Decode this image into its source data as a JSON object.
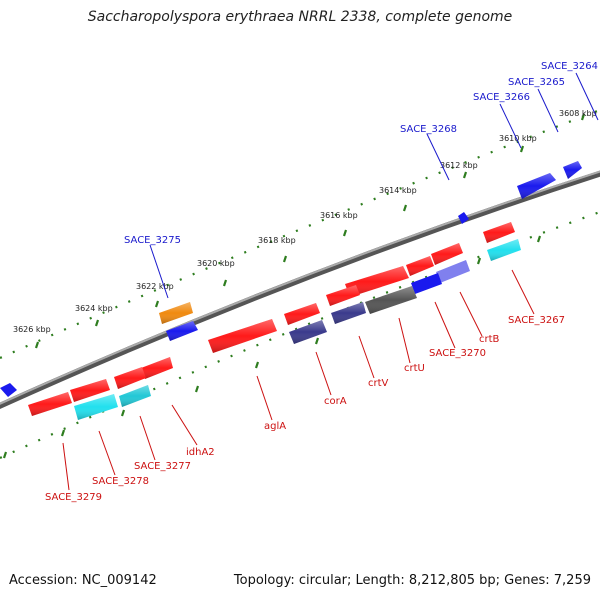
{
  "title": "Saccharopolyspora erythraea NRRL 2338, complete genome",
  "footer": {
    "accession": "Accession: NC_009142",
    "summary": "Topology: circular; Length: 8,212,805 bp; Genes: 7,259"
  },
  "colors": {
    "backbone": "#888888",
    "tick": "#2e7d1f",
    "gene_red": "#ff1a1a",
    "gene_blue": "#1a1aee",
    "gene_cyan": "#22e0ee",
    "gene_orange": "#f08a10",
    "gene_darkblue": "#3a3a8c",
    "gene_lightblue": "#8080ee",
    "gene_gray": "#666666",
    "label_blue": "#1a1acc",
    "label_red": "#cc1111"
  },
  "scale_labels": [
    "3608 kbp",
    "3610 kbp",
    "3612 kbp",
    "3614 kbp",
    "3616 kbp",
    "3618 kbp",
    "3620 kbp",
    "3622 kbp",
    "3624 kbp",
    "3626 kbp"
  ],
  "top_gene_labels": [
    "SACE_3264",
    "SACE_3265",
    "SACE_3266",
    "SACE_3268",
    "SACE_3275"
  ],
  "bottom_gene_labels": [
    "SACE_3267",
    "crtB",
    "SACE_3270",
    "crtU",
    "crtV",
    "corA",
    "aglA",
    "idhA2",
    "SACE_3277",
    "SACE_3278",
    "SACE_3279"
  ]
}
